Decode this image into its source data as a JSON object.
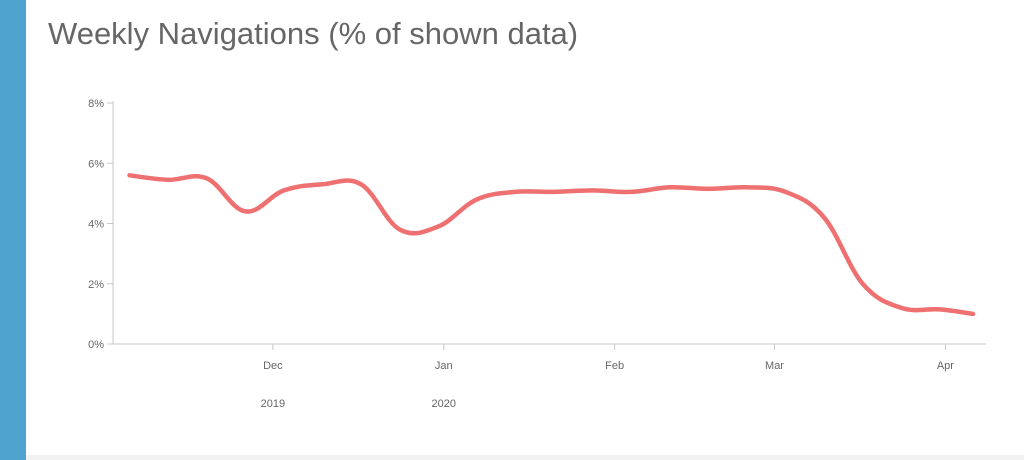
{
  "colors": {
    "accent": "#4fa3cf",
    "line": "#ee7070",
    "axis": "#c8c8c8",
    "text": "#666666"
  },
  "chart_data": {
    "type": "line",
    "title": "Weekly Navigations (% of shown data)",
    "xlabel": "",
    "ylabel": "",
    "y_unit": "%",
    "ylim": [
      0,
      8
    ],
    "y_ticks": [
      {
        "value": 0,
        "label": "0%"
      },
      {
        "value": 2,
        "label": "2%"
      },
      {
        "value": 4,
        "label": "4%"
      },
      {
        "value": 6,
        "label": "6%"
      },
      {
        "value": 8,
        "label": "8%"
      }
    ],
    "xlim": [
      "2019-11-02",
      "2020-04-08"
    ],
    "x_ticks": [
      {
        "date": "2019-12-01",
        "label": "Dec",
        "year": "2019"
      },
      {
        "date": "2020-01-01",
        "label": "Jan",
        "year": "2020"
      },
      {
        "date": "2020-02-01",
        "label": "Feb",
        "year": ""
      },
      {
        "date": "2020-03-01",
        "label": "Mar",
        "year": ""
      },
      {
        "date": "2020-04-01",
        "label": "Apr",
        "year": ""
      }
    ],
    "grid": false,
    "legend": "none",
    "series": [
      {
        "x": [
          "2019-11-05",
          "2019-11-12",
          "2019-11-19",
          "2019-11-26",
          "2019-12-03",
          "2019-12-10",
          "2019-12-17",
          "2019-12-24",
          "2019-12-31",
          "2020-01-07",
          "2020-01-14",
          "2020-01-21",
          "2020-01-28",
          "2020-02-04",
          "2020-02-11",
          "2020-02-18",
          "2020-02-25",
          "2020-03-03",
          "2020-03-10",
          "2020-03-17",
          "2020-03-24",
          "2020-03-31",
          "2020-04-06"
        ],
        "values": [
          5.6,
          5.45,
          5.5,
          4.4,
          5.1,
          5.3,
          5.3,
          3.8,
          3.9,
          4.8,
          5.05,
          5.05,
          5.1,
          5.05,
          5.2,
          5.15,
          5.2,
          5.05,
          4.2,
          2.0,
          1.2,
          1.15,
          1.0
        ]
      }
    ]
  }
}
